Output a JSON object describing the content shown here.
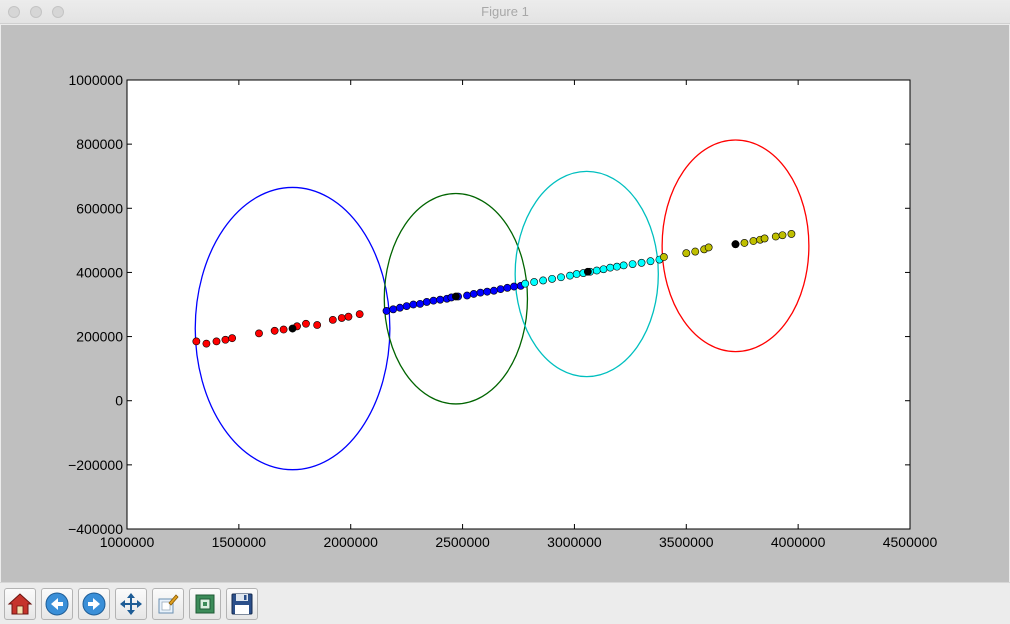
{
  "window": {
    "title": "Figure 1"
  },
  "toolbar": {
    "buttons": [
      {
        "icon": "home-icon"
      },
      {
        "icon": "back-icon"
      },
      {
        "icon": "forward-icon"
      },
      {
        "icon": "pan-icon"
      },
      {
        "icon": "configure-subplots-icon"
      },
      {
        "icon": "zoom-to-rect-icon"
      },
      {
        "icon": "save-icon"
      }
    ]
  },
  "chart_data": {
    "type": "scatter",
    "title": "",
    "xlabel": "",
    "ylabel": "",
    "xlim": [
      1000000,
      4500000
    ],
    "ylim": [
      -400000,
      1000000
    ],
    "xticks": [
      {
        "value": 1000000,
        "label": "1000000"
      },
      {
        "value": 1500000,
        "label": "1500000"
      },
      {
        "value": 2000000,
        "label": "2000000"
      },
      {
        "value": 2500000,
        "label": "2500000"
      },
      {
        "value": 3000000,
        "label": "3000000"
      },
      {
        "value": 3500000,
        "label": "3500000"
      },
      {
        "value": 4000000,
        "label": "4000000"
      },
      {
        "value": 4500000,
        "label": "4500000"
      }
    ],
    "yticks": [
      {
        "value": -400000,
        "label": "−400000"
      },
      {
        "value": -200000,
        "label": "−200000"
      },
      {
        "value": 0,
        "label": "0"
      },
      {
        "value": 200000,
        "label": "200000"
      },
      {
        "value": 400000,
        "label": "400000"
      },
      {
        "value": 600000,
        "label": "600000"
      },
      {
        "value": 800000,
        "label": "800000"
      },
      {
        "value": 1000000,
        "label": "1000000"
      }
    ],
    "grid": false,
    "clusters": [
      {
        "color": "#ff0000",
        "points": [
          [
            1310000,
            185000
          ],
          [
            1355000,
            178000
          ],
          [
            1400000,
            185000
          ],
          [
            1440000,
            190000
          ],
          [
            1470000,
            195000
          ],
          [
            1590000,
            210000
          ],
          [
            1660000,
            218000
          ],
          [
            1700000,
            222000
          ],
          [
            1760000,
            232000
          ],
          [
            1800000,
            240000
          ],
          [
            1850000,
            236000
          ],
          [
            1920000,
            252000
          ],
          [
            1960000,
            258000
          ],
          [
            1990000,
            262000
          ],
          [
            2040000,
            270000
          ]
        ],
        "centroid": [
          1740000,
          225000
        ],
        "ellipse": {
          "color": "#0000ff",
          "center": [
            1740000,
            225000
          ],
          "rx": 435000,
          "ry": 440000
        }
      },
      {
        "color": "#0000ff",
        "points": [
          [
            2160000,
            280000
          ],
          [
            2190000,
            285000
          ],
          [
            2220000,
            290000
          ],
          [
            2250000,
            295000
          ],
          [
            2280000,
            300000
          ],
          [
            2310000,
            302000
          ],
          [
            2340000,
            308000
          ],
          [
            2370000,
            312000
          ],
          [
            2400000,
            315000
          ],
          [
            2430000,
            318000
          ],
          [
            2450000,
            322000
          ],
          [
            2480000,
            325000
          ],
          [
            2520000,
            328000
          ],
          [
            2550000,
            333000
          ],
          [
            2580000,
            337000
          ],
          [
            2610000,
            340000
          ],
          [
            2640000,
            343000
          ],
          [
            2670000,
            348000
          ],
          [
            2700000,
            352000
          ],
          [
            2730000,
            356000
          ],
          [
            2760000,
            358000
          ]
        ],
        "centroid": [
          2470000,
          325000
        ],
        "ellipse": {
          "color": "#006400",
          "center": [
            2470000,
            318000
          ],
          "rx": 320000,
          "ry": 328000
        }
      },
      {
        "color": "#00ffff",
        "points": [
          [
            2780000,
            365000
          ],
          [
            2820000,
            370000
          ],
          [
            2860000,
            375000
          ],
          [
            2900000,
            380000
          ],
          [
            2940000,
            385000
          ],
          [
            2980000,
            390000
          ],
          [
            3010000,
            395000
          ],
          [
            3040000,
            398000
          ],
          [
            3070000,
            402000
          ],
          [
            3100000,
            406000
          ],
          [
            3130000,
            410000
          ],
          [
            3160000,
            415000
          ],
          [
            3190000,
            418000
          ],
          [
            3220000,
            422000
          ],
          [
            3260000,
            426000
          ],
          [
            3300000,
            430000
          ],
          [
            3340000,
            435000
          ],
          [
            3380000,
            440000
          ]
        ],
        "centroid": [
          3060000,
          402000
        ],
        "ellipse": {
          "color": "#00bfbf",
          "center": [
            3055000,
            395000
          ],
          "rx": 320000,
          "ry": 320000
        }
      },
      {
        "color": "#bfbf00",
        "points": [
          [
            3400000,
            448000
          ],
          [
            3500000,
            460000
          ],
          [
            3540000,
            465000
          ],
          [
            3580000,
            472000
          ],
          [
            3600000,
            478000
          ],
          [
            3720000,
            488000
          ],
          [
            3760000,
            492000
          ],
          [
            3800000,
            498000
          ],
          [
            3830000,
            502000
          ],
          [
            3850000,
            506000
          ],
          [
            3900000,
            512000
          ],
          [
            3930000,
            516000
          ],
          [
            3970000,
            520000
          ]
        ],
        "centroid": [
          3720000,
          488000
        ],
        "ellipse": {
          "color": "#ff0000",
          "center": [
            3720000,
            483000
          ],
          "rx": 328000,
          "ry": 330000
        }
      }
    ]
  }
}
